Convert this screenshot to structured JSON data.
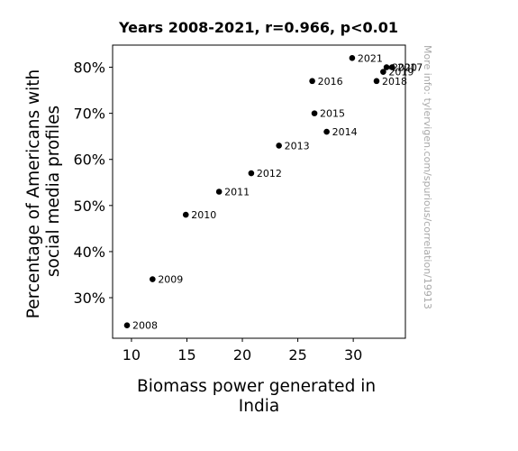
{
  "chart_data": {
    "type": "scatter",
    "title": "Years 2008-2021, r=0.966, p<0.01",
    "xlabel_lines": [
      "Biomass power generated in",
      "India"
    ],
    "ylabel_lines": [
      "Percentage of Americans with",
      "social media profiles"
    ],
    "xlim": [
      8.3,
      34.7
    ],
    "ylim": [
      21.2,
      84.8
    ],
    "x_ticks": [
      10,
      15,
      20,
      25,
      30
    ],
    "y_ticks": [
      30,
      40,
      50,
      60,
      70,
      80
    ],
    "y_tick_suffix": "%",
    "grid": false,
    "legend": false,
    "point_color": "#000000",
    "points": [
      {
        "label": "2008",
        "x": 9.6,
        "y": 24
      },
      {
        "label": "2009",
        "x": 11.9,
        "y": 34
      },
      {
        "label": "2010",
        "x": 14.9,
        "y": 48
      },
      {
        "label": "2011",
        "x": 17.9,
        "y": 53
      },
      {
        "label": "2012",
        "x": 20.8,
        "y": 57
      },
      {
        "label": "2013",
        "x": 23.3,
        "y": 63
      },
      {
        "label": "2014",
        "x": 27.6,
        "y": 66
      },
      {
        "label": "2015",
        "x": 26.5,
        "y": 70
      },
      {
        "label": "2016",
        "x": 26.3,
        "y": 77
      },
      {
        "label": "2017",
        "x": 33.5,
        "y": 80
      },
      {
        "label": "2018",
        "x": 32.1,
        "y": 77
      },
      {
        "label": "2019",
        "x": 32.7,
        "y": 79
      },
      {
        "label": "2020",
        "x": 33.0,
        "y": 80
      },
      {
        "label": "2021",
        "x": 29.9,
        "y": 82
      }
    ],
    "watermark": "More info: tylervigen.com/spurious/correlation/19913"
  }
}
